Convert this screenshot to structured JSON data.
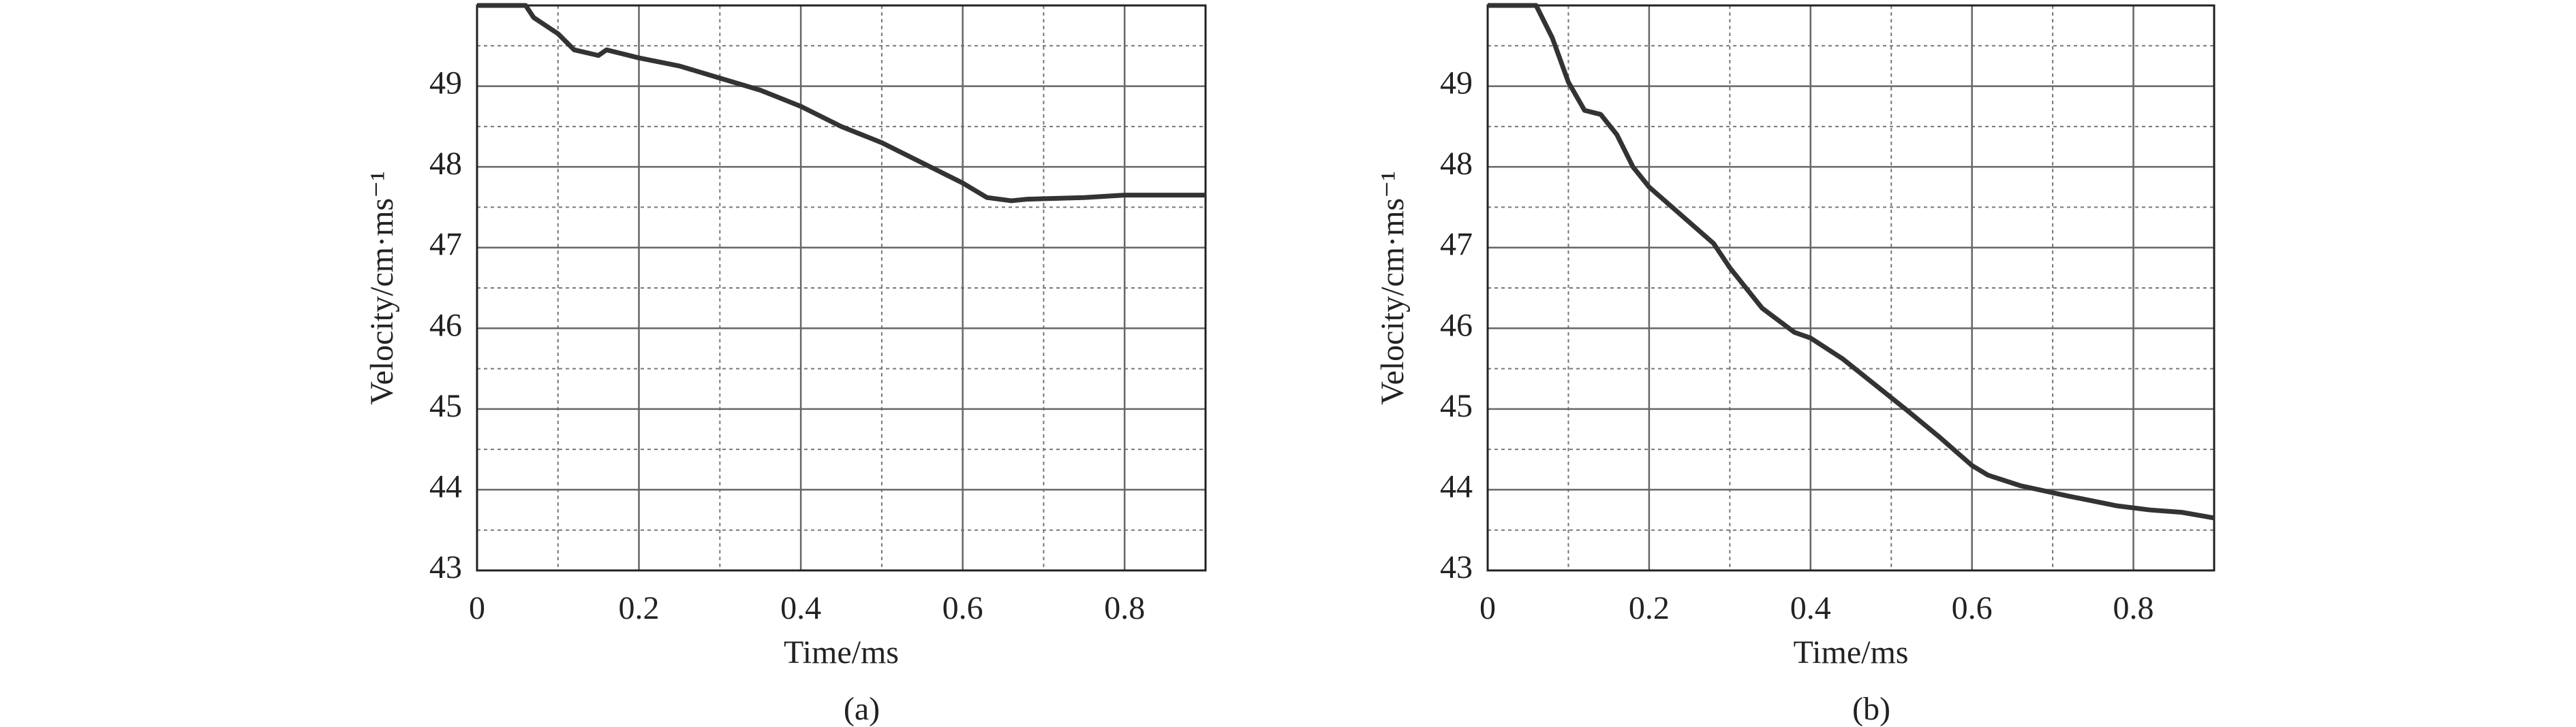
{
  "chart_data": [
    {
      "type": "line",
      "caption": "(a)",
      "x_label": "Time/ms",
      "y_label": "Velocity/cm·ms⁻¹",
      "xlim": [
        0,
        0.9
      ],
      "xticks": [
        0,
        0.2,
        0.4,
        0.6,
        0.8
      ],
      "ylim": [
        43,
        50
      ],
      "yticks": [
        43,
        44,
        45,
        46,
        47,
        48,
        49
      ],
      "grid": true,
      "color": "#333333",
      "x": [
        0,
        0.06,
        0.07,
        0.1,
        0.12,
        0.15,
        0.16,
        0.2,
        0.25,
        0.3,
        0.35,
        0.4,
        0.45,
        0.5,
        0.55,
        0.6,
        0.63,
        0.66,
        0.68,
        0.75,
        0.8,
        0.9
      ],
      "values": [
        50,
        50,
        49.85,
        49.65,
        49.45,
        49.38,
        49.45,
        49.35,
        49.25,
        49.1,
        48.95,
        48.75,
        48.5,
        48.3,
        48.05,
        47.8,
        47.62,
        47.58,
        47.6,
        47.62,
        47.65,
        47.65
      ]
    },
    {
      "type": "line",
      "caption": "(b)",
      "x_label": "Time/ms",
      "y_label": "Velocity/cm·ms⁻¹",
      "xlim": [
        0,
        0.9
      ],
      "xticks": [
        0,
        0.2,
        0.4,
        0.6,
        0.8
      ],
      "ylim": [
        43,
        50
      ],
      "yticks": [
        43,
        44,
        45,
        46,
        47,
        48,
        49
      ],
      "grid": true,
      "color": "#333333",
      "x": [
        0,
        0.06,
        0.08,
        0.1,
        0.12,
        0.14,
        0.16,
        0.18,
        0.2,
        0.24,
        0.28,
        0.3,
        0.34,
        0.38,
        0.4,
        0.44,
        0.48,
        0.52,
        0.56,
        0.6,
        0.62,
        0.66,
        0.72,
        0.78,
        0.82,
        0.86,
        0.9
      ],
      "values": [
        50,
        50,
        49.6,
        49.05,
        48.7,
        48.65,
        48.4,
        48.0,
        47.75,
        47.4,
        47.05,
        46.75,
        46.25,
        45.95,
        45.88,
        45.62,
        45.3,
        44.98,
        44.65,
        44.3,
        44.18,
        44.05,
        43.92,
        43.8,
        43.75,
        43.72,
        43.65
      ]
    }
  ]
}
